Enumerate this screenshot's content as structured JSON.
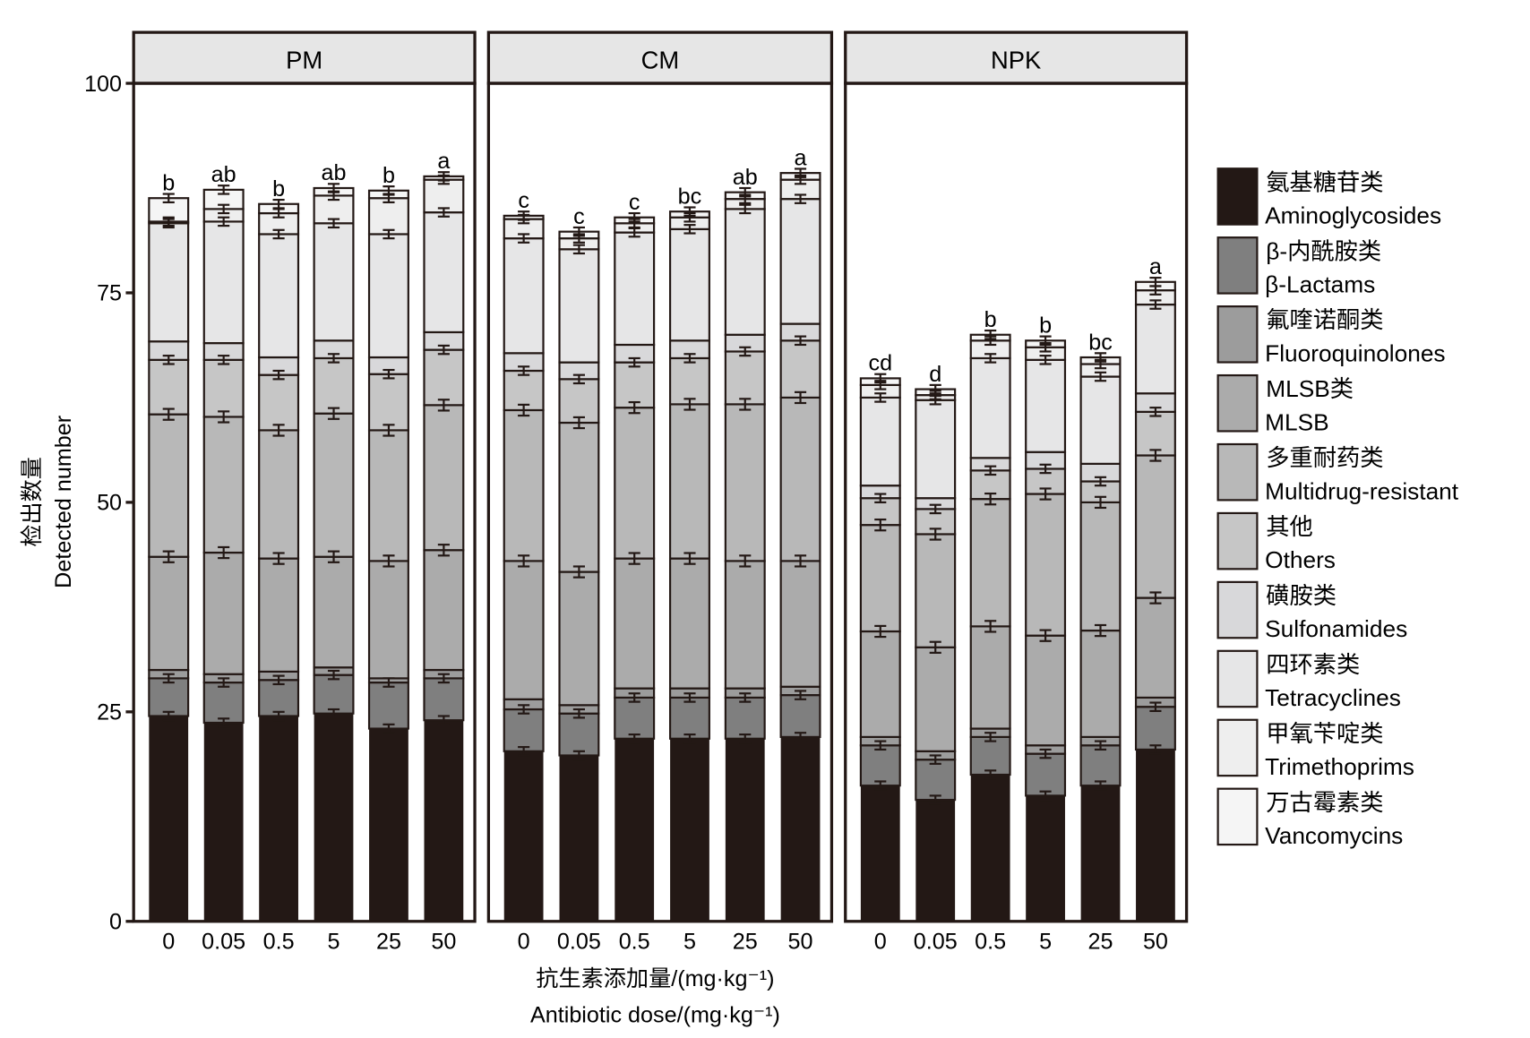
{
  "chart_data": {
    "type": "bar",
    "stacked": true,
    "ylabel_cn": "检出数量",
    "ylabel": "Detected number",
    "xlabel_cn": "抗生素添加量/(mg·kg⁻¹)",
    "xlabel": "Antibiotic dose/(mg·kg⁻¹)",
    "ylim": [
      0,
      100
    ],
    "yticks": [
      0,
      25,
      50,
      75,
      100
    ],
    "categories": [
      "0",
      "0.05",
      "0.5",
      "5",
      "25",
      "50"
    ],
    "legend_position": "right",
    "series": [
      {
        "name": "Aminoglycosides",
        "name_cn": "氨基糖苷类",
        "color": "#231815"
      },
      {
        "name": "β-Lactams",
        "name_cn": "β-内酰胺类",
        "color": "#7f7f7f"
      },
      {
        "name": "Fluoroquinolones",
        "name_cn": "氟喹诺酮类",
        "color": "#9c9c9c"
      },
      {
        "name": "MLSB",
        "name_cn": "MLSB类",
        "color": "#ababab"
      },
      {
        "name": "Multidrug-resistant",
        "name_cn": "多重耐药类",
        "color": "#b8b8b8"
      },
      {
        "name": "Others",
        "name_cn": "其他",
        "color": "#c6c6c6"
      },
      {
        "name": "Sulfonamides",
        "name_cn": "磺胺类",
        "color": "#d8d8da"
      },
      {
        "name": "Tetracyclines",
        "name_cn": "四环素类",
        "color": "#e6e6e7"
      },
      {
        "name": "Trimethoprims",
        "name_cn": "甲氧苄啶类",
        "color": "#eeeeee"
      },
      {
        "name": "Vancomycins",
        "name_cn": "万古霉素类",
        "color": "#f5f5f5"
      }
    ],
    "panels": [
      {
        "title": "PM",
        "letters": [
          "b",
          "ab",
          "b",
          "ab",
          "b",
          "a"
        ],
        "cumulative": [
          [
            24.5,
            29,
            30,
            43.5,
            60.5,
            67,
            69.2,
            83.3,
            83.5,
            86.3
          ],
          [
            23.7,
            28.5,
            29.5,
            44,
            60.2,
            67,
            69,
            83.5,
            85,
            87.3
          ],
          [
            24.5,
            28.8,
            29.8,
            43.3,
            58.6,
            65.2,
            67.3,
            82,
            84.5,
            85.6
          ],
          [
            24.8,
            29.4,
            30.3,
            43.5,
            60.6,
            67.2,
            69.3,
            83.3,
            86.6,
            87.5
          ],
          [
            23,
            28.5,
            29,
            43,
            58.6,
            65.3,
            67.3,
            82,
            86.3,
            87.2
          ],
          [
            24,
            29,
            30,
            44.3,
            61.6,
            68.2,
            70.3,
            84.6,
            88.5,
            88.9
          ]
        ]
      },
      {
        "title": "CM",
        "letters": [
          "c",
          "c",
          "c",
          "bc",
          "ab",
          "a"
        ],
        "cumulative": [
          [
            20.3,
            25.3,
            26.5,
            43,
            61,
            65.7,
            67.8,
            81.5,
            83.8,
            84.2
          ],
          [
            19.8,
            24.8,
            25.8,
            41.7,
            59.5,
            64.7,
            66.7,
            80.2,
            81.5,
            82.3
          ],
          [
            21.8,
            26.7,
            27.8,
            43.3,
            61.3,
            66.7,
            68.8,
            82.2,
            83.3,
            84
          ],
          [
            21.8,
            26.7,
            27.8,
            43.3,
            61.7,
            67.2,
            69.3,
            82.6,
            84,
            84.7
          ],
          [
            21.8,
            26.7,
            27.8,
            43,
            61.7,
            68,
            70,
            85,
            86.2,
            87
          ],
          [
            22,
            27,
            28,
            43,
            62.5,
            69.3,
            71.3,
            86.2,
            88.5,
            89.3
          ]
        ]
      },
      {
        "title": "NPK",
        "letters": [
          "cd",
          "d",
          "b",
          "b",
          "bc",
          "a"
        ],
        "cumulative": [
          [
            16.2,
            21,
            22,
            34.6,
            47.3,
            50.5,
            52,
            62.5,
            64,
            64.8
          ],
          [
            14.5,
            19.3,
            20.3,
            32.7,
            46.2,
            49.2,
            50.5,
            62.2,
            62.8,
            63.5
          ],
          [
            17.5,
            22,
            23,
            35.2,
            50.4,
            53.8,
            55.3,
            67.2,
            69.3,
            70
          ],
          [
            15,
            20,
            21,
            34.1,
            51,
            54,
            56,
            67,
            68.5,
            69.3
          ],
          [
            16.2,
            21,
            22,
            34.7,
            50,
            52.5,
            54.6,
            65,
            66.5,
            67.3
          ],
          [
            20.5,
            25.6,
            26.7,
            38.6,
            55.6,
            60.8,
            63,
            73.6,
            75.3,
            76.3
          ]
        ]
      }
    ],
    "error_sd": 0.5
  }
}
